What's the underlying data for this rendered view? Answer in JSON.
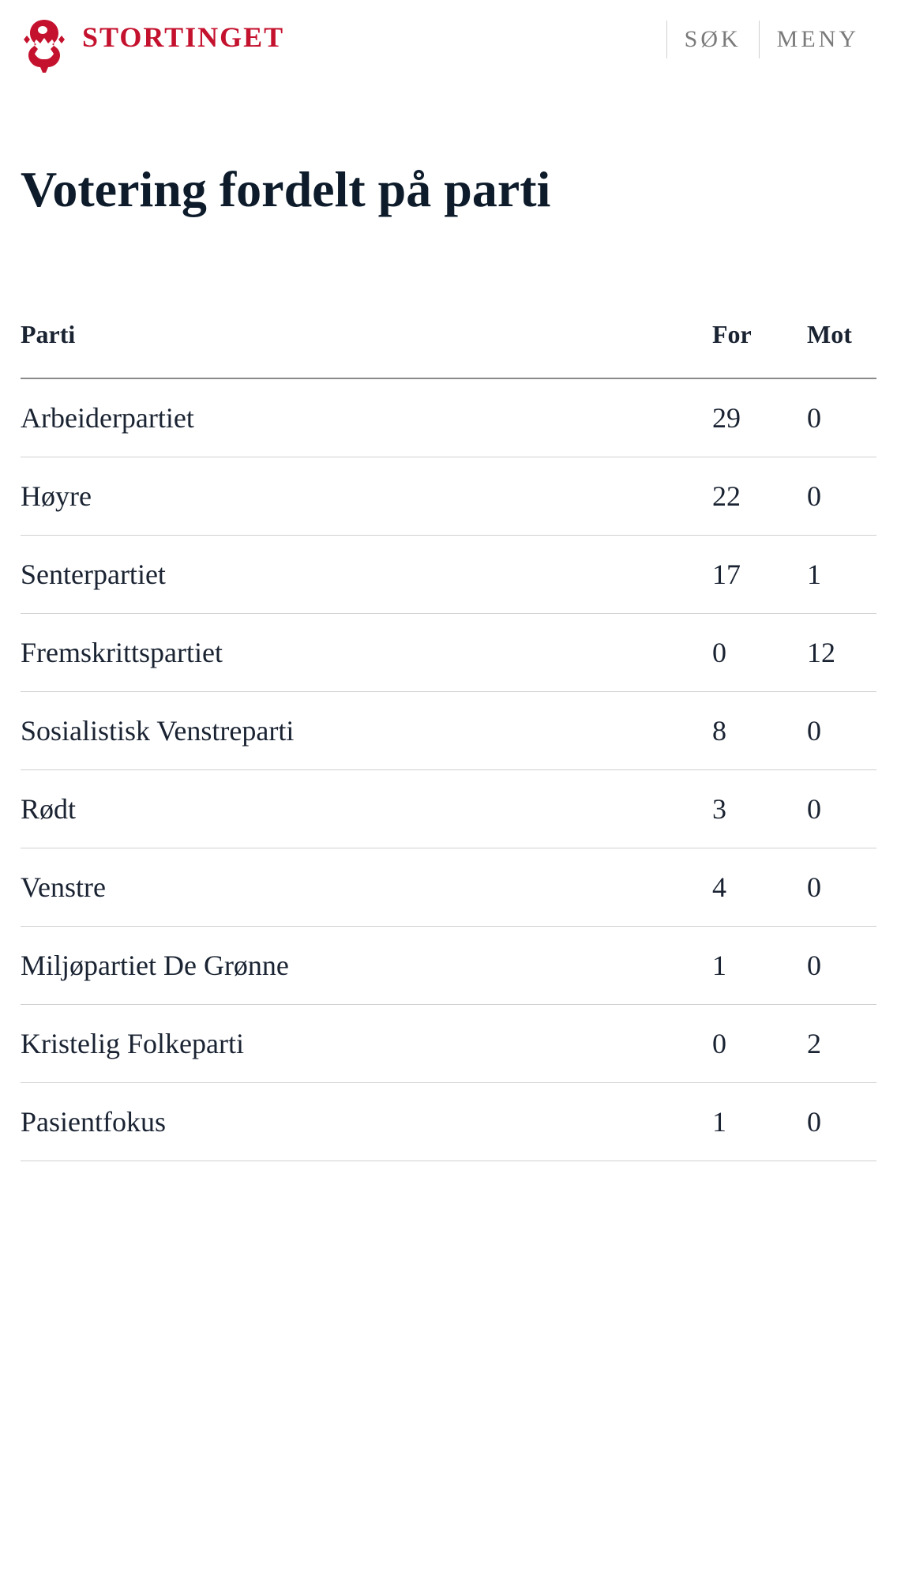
{
  "header": {
    "logo_text": "STORTINGET",
    "nav": {
      "search": "SØK",
      "menu": "MENY"
    }
  },
  "page": {
    "title": "Votering fordelt på parti"
  },
  "table": {
    "columns": {
      "party": "Parti",
      "for": "For",
      "against": "Mot"
    },
    "rows": [
      {
        "party": "Arbeiderpartiet",
        "for": "29",
        "against": "0"
      },
      {
        "party": "Høyre",
        "for": "22",
        "against": "0"
      },
      {
        "party": "Senterpartiet",
        "for": "17",
        "against": "1"
      },
      {
        "party": "Fremskrittspartiet",
        "for": "0",
        "against": "12"
      },
      {
        "party": "Sosialistisk Venstreparti",
        "for": "8",
        "against": "0"
      },
      {
        "party": "Rødt",
        "for": "3",
        "against": "0"
      },
      {
        "party": "Venstre",
        "for": "4",
        "against": "0"
      },
      {
        "party": "Miljøpartiet De Grønne",
        "for": "1",
        "against": "0"
      },
      {
        "party": "Kristelig Folkeparti",
        "for": "0",
        "against": "2"
      },
      {
        "party": "Pasientfokus",
        "for": "1",
        "against": "0"
      }
    ]
  },
  "colors": {
    "brand": "#c4122e",
    "text_primary": "#1a2332",
    "text_title": "#0d1b2a",
    "text_nav": "#7a7a7a",
    "border_header": "#8a8a8a",
    "border_row": "#d0d0d0",
    "background": "#ffffff"
  }
}
